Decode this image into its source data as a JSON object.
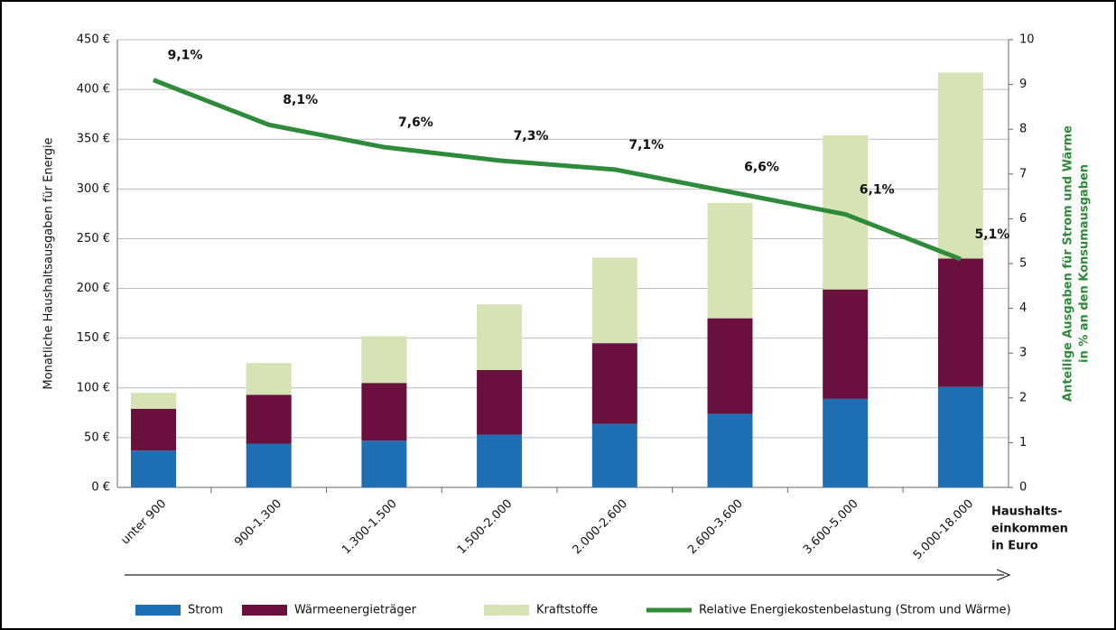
{
  "chart_data": {
    "type": "bar",
    "stacked": true,
    "ylabel": "Monatliche Haushaltsausgaben für Energie",
    "y2label": [
      "Anteilige Ausgaben für Strom und Wärme",
      "in % an den Konsumausgaben"
    ],
    "xlabel": [
      "Haushalts-",
      "einkommen",
      "in Euro"
    ],
    "categories": [
      "unter 900",
      "900-1.300",
      "1.300-1.500",
      "1.500-2.000",
      "2.000-2.600",
      "2.600-3.600",
      "3.600-5.000",
      "5.000-18.000"
    ],
    "series": [
      {
        "name": "Strom",
        "color": "#1f6fb5",
        "values": [
          37,
          44,
          47,
          53,
          64,
          74,
          89,
          101
        ]
      },
      {
        "name": "Wärmeenergieträger",
        "color": "#6b0f3e",
        "values": [
          42,
          49,
          58,
          65,
          81,
          96,
          110,
          129
        ]
      },
      {
        "name": "Kraftstoffe",
        "color": "#d5e3b5",
        "values": [
          16,
          32,
          47,
          66,
          86,
          116,
          155,
          187
        ]
      },
      {
        "name": "Relative Energiekostenbelastung (Strom und Wärme)",
        "color": "#2e8b3a",
        "type": "line",
        "axis": "y2",
        "values": [
          9.1,
          8.1,
          7.6,
          7.3,
          7.1,
          6.6,
          6.1,
          5.1
        ],
        "value_labels": [
          "9,1%",
          "8,1%",
          "7,6%",
          "7,3%",
          "7,1%",
          "6,6%",
          "6,1%",
          "5,1%"
        ]
      }
    ],
    "ylim": [
      0,
      450
    ],
    "yticks": [
      {
        "value": 0,
        "label": "0 €"
      },
      {
        "value": 50,
        "label": "50 €"
      },
      {
        "value": 100,
        "label": "100 €"
      },
      {
        "value": 150,
        "label": "150 €"
      },
      {
        "value": 200,
        "label": "200 €"
      },
      {
        "value": 250,
        "label": "250 €"
      },
      {
        "value": 300,
        "label": "300 €"
      },
      {
        "value": 350,
        "label": "350 €"
      },
      {
        "value": 400,
        "label": "400 €"
      },
      {
        "value": 450,
        "label": "450 €"
      }
    ],
    "y2lim": [
      0,
      10
    ],
    "y2ticks": [
      0,
      1,
      2,
      3,
      4,
      5,
      6,
      7,
      8,
      9,
      10
    ],
    "grid": true,
    "legend": "bottom"
  }
}
